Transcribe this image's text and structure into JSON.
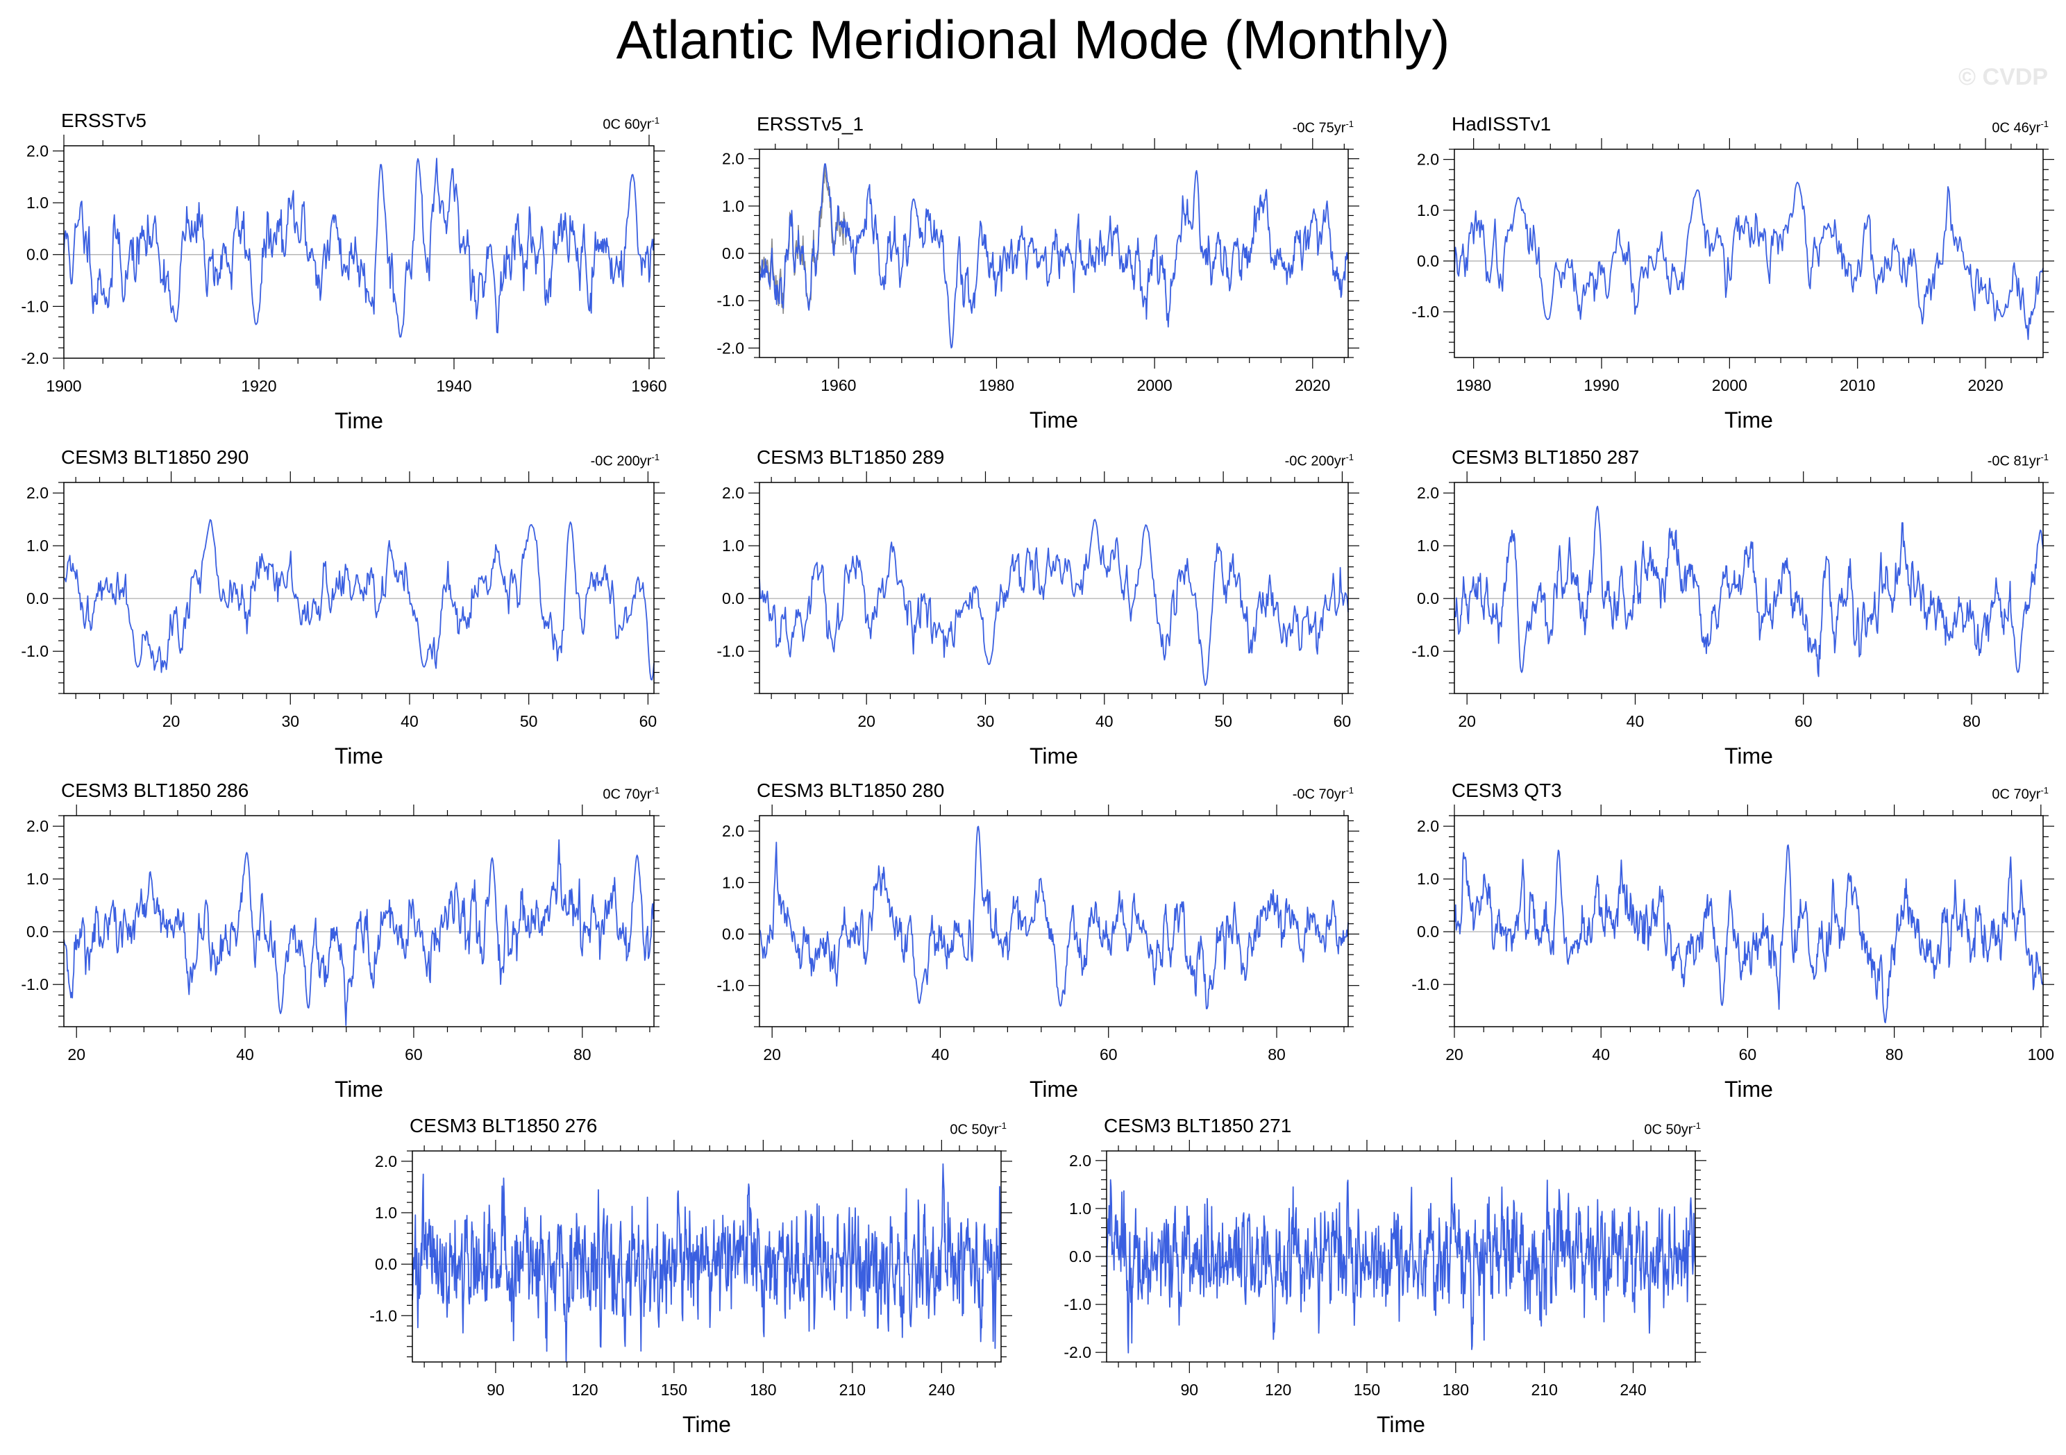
{
  "figure": {
    "title": "Atlantic Meridional Mode (Monthly)",
    "watermark": "© CVDP",
    "line_color": "#3a5fe0",
    "secondary_line_color": "#8a8a8a",
    "zero_line_color": "#a9a9a9"
  },
  "chart_data": [
    {
      "type": "line",
      "title": "ERSSTv5",
      "trend": "0C 60yr",
      "trend_unit": "-1",
      "xlabel": "Time",
      "xlim": [
        1900,
        1960.5
      ],
      "xticks": [
        1900,
        1920,
        1940,
        1960
      ],
      "ylim": [
        -2.0,
        2.1
      ],
      "yticks": [
        -2.0,
        -1.0,
        0.0,
        1.0,
        2.0
      ],
      "seed": 11,
      "n": 726,
      "amplitude": 0.55,
      "extremes": [
        [
          1932.5,
          1.75
        ],
        [
          1936.3,
          1.85
        ],
        [
          1934.5,
          -1.6
        ],
        [
          1958.3,
          1.55
        ],
        [
          1919.7,
          -1.35
        ],
        [
          1911.5,
          -1.3
        ]
      ]
    },
    {
      "type": "line",
      "title": "ERSSTv5_1",
      "trend": "-0C 75yr",
      "trend_unit": "-1",
      "xlabel": "Time",
      "xlim": [
        1950,
        2024.5
      ],
      "xticks": [
        1960,
        1980,
        2000,
        2020
      ],
      "ylim": [
        -2.2,
        2.2
      ],
      "yticks": [
        -2.0,
        -1.0,
        0.0,
        1.0,
        2.0
      ],
      "seed": 23,
      "n": 894,
      "amplitude": 0.5,
      "overlay_range": [
        1950,
        1961
      ],
      "extremes": [
        [
          1958.3,
          1.9
        ],
        [
          1974.3,
          -2.0
        ],
        [
          2005.3,
          1.75
        ],
        [
          1969.5,
          1.15
        ]
      ]
    },
    {
      "type": "line",
      "title": "HadISSTv1",
      "trend": "0C 46yr",
      "trend_unit": "-1",
      "xlabel": "Time",
      "xlim": [
        1978.5,
        2024.5
      ],
      "xticks": [
        1980,
        1990,
        2000,
        2010,
        2020
      ],
      "ylim": [
        -1.9,
        2.2
      ],
      "yticks": [
        -1.0,
        0.0,
        1.0,
        2.0
      ],
      "seed": 37,
      "n": 552,
      "amplitude": 0.5,
      "extremes": [
        [
          2005.3,
          1.55
        ],
        [
          1997.5,
          1.4
        ],
        [
          1983.5,
          1.25
        ],
        [
          1985.8,
          -1.15
        ],
        [
          2021.3,
          -1.1
        ]
      ]
    },
    {
      "type": "line",
      "title": "CESM3 BLT1850 290",
      "trend": "-0C 200yr",
      "trend_unit": "-1",
      "xlabel": "Time",
      "xlim": [
        11,
        60.5
      ],
      "xticks": [
        20,
        30,
        40,
        50,
        60
      ],
      "ylim": [
        -1.8,
        2.2
      ],
      "yticks": [
        -1.0,
        0.0,
        1.0,
        2.0
      ],
      "seed": 41,
      "n": 594,
      "amplitude": 0.5,
      "extremes": [
        [
          23.3,
          1.5
        ],
        [
          50.2,
          1.4
        ],
        [
          53.5,
          1.45
        ],
        [
          41.2,
          -1.3
        ],
        [
          60.3,
          -1.55
        ],
        [
          17.2,
          -1.3
        ]
      ]
    },
    {
      "type": "line",
      "title": "CESM3 BLT1850 289",
      "trend": "-0C 200yr",
      "trend_unit": "-1",
      "xlabel": "Time",
      "xlim": [
        11,
        60.5
      ],
      "xticks": [
        20,
        30,
        40,
        50,
        60
      ],
      "ylim": [
        -1.8,
        2.2
      ],
      "yticks": [
        -1.0,
        0.0,
        1.0,
        2.0
      ],
      "seed": 53,
      "n": 594,
      "amplitude": 0.5,
      "extremes": [
        [
          39.2,
          1.5
        ],
        [
          43.5,
          1.4
        ],
        [
          48.5,
          -1.65
        ],
        [
          30.3,
          -1.25
        ]
      ]
    },
    {
      "type": "line",
      "title": "CESM3 BLT1850 287",
      "trend": "-0C 81yr",
      "trend_unit": "-1",
      "xlabel": "Time",
      "xlim": [
        18.5,
        88.5
      ],
      "xticks": [
        20,
        40,
        60,
        80
      ],
      "ylim": [
        -1.8,
        2.2
      ],
      "yticks": [
        -1.0,
        0.0,
        1.0,
        2.0
      ],
      "seed": 67,
      "n": 840,
      "amplitude": 0.5,
      "extremes": [
        [
          35.5,
          1.75
        ],
        [
          88.2,
          1.3
        ],
        [
          26.5,
          -1.4
        ],
        [
          85.5,
          -1.4
        ]
      ]
    },
    {
      "type": "line",
      "title": "CESM3 BLT1850 286",
      "trend": "0C 70yr",
      "trend_unit": "-1",
      "xlabel": "Time",
      "xlim": [
        18.5,
        88.5
      ],
      "xticks": [
        20,
        40,
        60,
        80
      ],
      "ylim": [
        -1.8,
        2.2
      ],
      "yticks": [
        -1.0,
        0.0,
        1.0,
        2.0
      ],
      "seed": 71,
      "n": 840,
      "amplitude": 0.45,
      "extremes": [
        [
          40.2,
          1.5
        ],
        [
          69.3,
          1.4
        ],
        [
          86.5,
          1.45
        ],
        [
          44.2,
          -1.55
        ],
        [
          47.5,
          -1.45
        ]
      ]
    },
    {
      "type": "line",
      "title": "CESM3 BLT1850 280",
      "trend": "-0C 70yr",
      "trend_unit": "-1",
      "xlabel": "Time",
      "xlim": [
        18.5,
        88.5
      ],
      "xticks": [
        20,
        40,
        60,
        80
      ],
      "ylim": [
        -1.8,
        2.3
      ],
      "yticks": [
        -1.0,
        0.0,
        1.0,
        2.0
      ],
      "seed": 83,
      "n": 840,
      "amplitude": 0.45,
      "extremes": [
        [
          44.5,
          2.1
        ],
        [
          54.3,
          -1.4
        ],
        [
          37.5,
          -1.35
        ]
      ]
    },
    {
      "type": "line",
      "title": "CESM3 QT3",
      "trend": "0C 70yr",
      "trend_unit": "-1",
      "xlabel": "Time",
      "xlim": [
        20,
        100.3
      ],
      "xticks": [
        20,
        40,
        60,
        80,
        100
      ],
      "ylim": [
        -1.8,
        2.2
      ],
      "yticks": [
        -1.0,
        0.0,
        1.0,
        2.0
      ],
      "seed": 97,
      "n": 964,
      "amplitude": 0.5,
      "extremes": [
        [
          65.5,
          1.65
        ],
        [
          34.2,
          1.55
        ],
        [
          56.5,
          -1.4
        ],
        [
          100.2,
          -1.0
        ]
      ]
    },
    {
      "type": "line",
      "title": "CESM3 BLT1850 276",
      "trend": "0C 50yr",
      "trend_unit": "-1",
      "xlabel": "Time",
      "xlim": [
        62,
        260
      ],
      "xticks": [
        90,
        120,
        150,
        180,
        210,
        240
      ],
      "ylim": [
        -1.9,
        2.2
      ],
      "yticks": [
        -1.0,
        0.0,
        1.0,
        2.0
      ],
      "seed": 101,
      "n": 1188,
      "amplitude": 0.55,
      "fast": true,
      "extremes": [
        [
          240.5,
          1.95
        ],
        [
          125.3,
          -1.7
        ],
        [
          133.5,
          -1.65
        ]
      ]
    },
    {
      "type": "line",
      "title": "CESM3 BLT1850 271",
      "trend": "0C 50yr",
      "trend_unit": "-1",
      "xlabel": "Time",
      "xlim": [
        62,
        261
      ],
      "xticks": [
        90,
        120,
        150,
        180,
        210,
        240
      ],
      "ylim": [
        -2.2,
        2.2
      ],
      "yticks": [
        -2.0,
        -1.0,
        0.0,
        1.0,
        2.0
      ],
      "seed": 113,
      "n": 1194,
      "amplitude": 0.55,
      "fast": true,
      "extremes": [
        [
          69.3,
          -2.05
        ],
        [
          185.5,
          -2.0
        ],
        [
          143.5,
          1.65
        ],
        [
          245.5,
          -1.6
        ]
      ]
    }
  ]
}
